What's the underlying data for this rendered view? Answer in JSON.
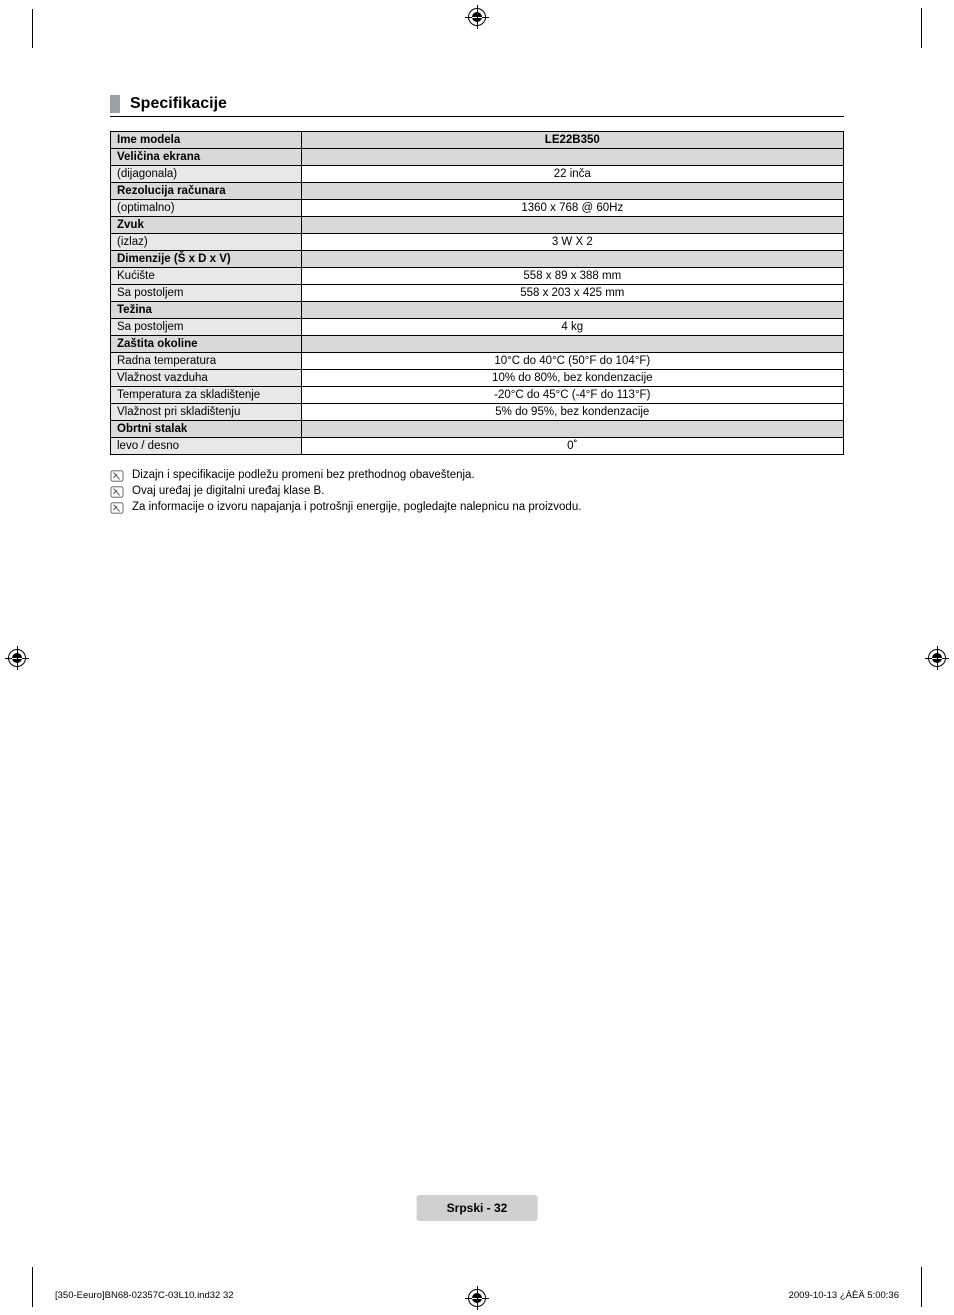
{
  "section_title": "Specifikacije",
  "table": {
    "header_label": "Ime modela",
    "header_value": "LE22B350",
    "rows": [
      {
        "type": "head",
        "label": "Veličina ekrana",
        "value": ""
      },
      {
        "type": "sub",
        "label": "(dijagonala)",
        "value": "22 inča"
      },
      {
        "type": "head",
        "label": "Rezolucija računara",
        "value": ""
      },
      {
        "type": "sub",
        "label": "(optimalno)",
        "value": "1360 x 768 @ 60Hz"
      },
      {
        "type": "head",
        "label": "Zvuk",
        "value": ""
      },
      {
        "type": "sub",
        "label": "(izlaz)",
        "value": "3 W X 2"
      },
      {
        "type": "head",
        "label": "Dimenzije (Š x D x V)",
        "value": ""
      },
      {
        "type": "sub",
        "label": "Kućište",
        "value": "558 x 89 x 388 mm"
      },
      {
        "type": "sub",
        "label": "Sa postoljem",
        "value": "558 x 203 x 425 mm"
      },
      {
        "type": "head",
        "label": "Težina",
        "value": ""
      },
      {
        "type": "sub",
        "label": "Sa postoljem",
        "value": "4 kg"
      },
      {
        "type": "head",
        "label": "Zaštita okoline",
        "value": ""
      },
      {
        "type": "sub",
        "label": "Radna temperatura",
        "value": "10°C do 40°C (50°F do 104°F)"
      },
      {
        "type": "sub",
        "label": "Vlažnost vazduha",
        "value": "10% do 80%, bez kondenzacije"
      },
      {
        "type": "sub",
        "label": "Temperatura za skladištenje",
        "value": "-20°C do 45°C (-4°F do 113°F)"
      },
      {
        "type": "sub",
        "label": "Vlažnost pri skladištenju",
        "value": "5% do 95%, bez kondenzacije"
      },
      {
        "type": "head",
        "label": "Obrtni stalak",
        "value": ""
      },
      {
        "type": "sub",
        "label": "levo / desno",
        "value": "0˚"
      }
    ]
  },
  "notes": [
    "Dizajn i specifikacije podležu promeni bez prethodnog obaveštenja.",
    "Ovaj uređaj je digitalni uređaj klase B.",
    "Za informacije o izvoru napajanja i potrošnji energije, pogledajte nalepnicu na proizvodu."
  ],
  "footer": "Srpski - 32",
  "footer_left": "[350-Eeuro]BN68-02357C-03L10.ind32   32",
  "footer_right": "2009-10-13   ¿ÀÈÄ 5:00:36"
}
